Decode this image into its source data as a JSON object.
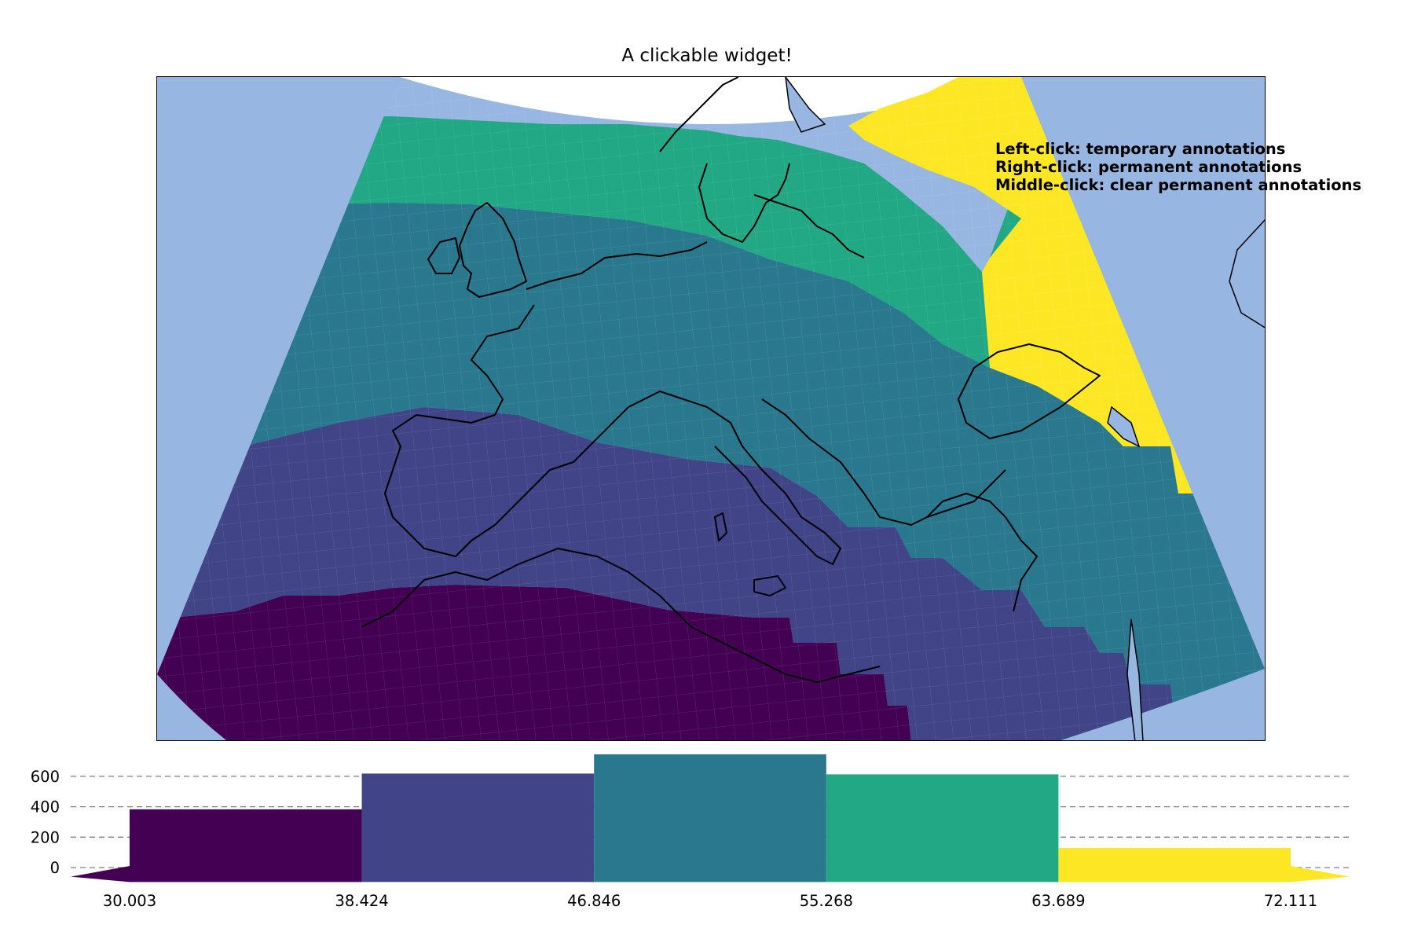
{
  "title": "A clickable widget!",
  "instructions": [
    "Left-click: temporary annotations",
    "Right-click: permanent annotations",
    "Middle-click: clear permanent annotations"
  ],
  "colors": {
    "ocean": "#97b6e1",
    "land_outside": "#ffffff",
    "coastline": "#000000",
    "bins": [
      "#440154",
      "#414487",
      "#2a788e",
      "#22a884",
      "#fde725"
    ]
  },
  "map": {
    "projection": "Albers conic",
    "region": "Europe / Mediterranean",
    "classes": [
      {
        "range": "30.003–38.424",
        "color": "#440154"
      },
      {
        "range": "38.424–46.846",
        "color": "#414487"
      },
      {
        "range": "46.846–55.268",
        "color": "#2a788e"
      },
      {
        "range": "55.268–63.689",
        "color": "#22a884"
      },
      {
        "range": "63.689–72.111",
        "color": "#fde725"
      }
    ]
  },
  "chart_data": {
    "type": "bar",
    "bin_edges": [
      30.003,
      38.424,
      46.846,
      55.268,
      63.689,
      72.111
    ],
    "x_tick_labels": [
      "30.003",
      "38.424",
      "46.846",
      "55.268",
      "63.689",
      "72.111"
    ],
    "values": [
      383,
      618,
      745,
      613,
      129
    ],
    "y_ticks": [
      0,
      200,
      400,
      600
    ],
    "y_tick_labels": [
      "0",
      "200",
      "400",
      "600"
    ],
    "ylim": [
      -95,
      760
    ],
    "grid": "horizontal dashed",
    "extend_arrows": "both",
    "xlabel": "",
    "ylabel": ""
  }
}
